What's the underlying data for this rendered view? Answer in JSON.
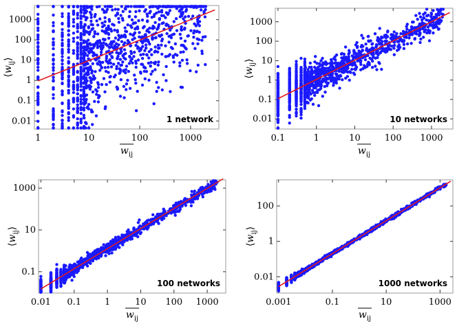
{
  "figure": {
    "xlabel": "w",
    "xlabel_sub": "ij",
    "ylabel": "w",
    "ylabel_sub": "ij",
    "point_color": "#1a1aff",
    "fit_color": "#e31a1c"
  },
  "chart_data": [
    {
      "type": "scatter",
      "annotation": "1 network",
      "xscale": "log",
      "yscale": "log",
      "xlim": [
        0.85,
        3600
      ],
      "ylim": [
        0.004,
        5000
      ],
      "xticks": [
        1,
        10,
        100,
        1000
      ],
      "xtick_labels": [
        "1",
        "10",
        "100",
        "1000"
      ],
      "yticks": [
        0.01,
        0.1,
        1,
        10,
        100,
        1000
      ],
      "ytick_labels": [
        "0.01",
        "0.1",
        "1",
        "10",
        "100",
        "1000"
      ],
      "fit_line": {
        "x": [
          1,
          3000
        ],
        "y": [
          0.95,
          3000
        ]
      },
      "discrete_x": [
        1,
        2,
        3,
        4,
        5,
        6,
        7,
        8
      ],
      "scatter_spread_decades": 1.2,
      "points_n": 1300
    },
    {
      "type": "scatter",
      "annotation": "10 networks",
      "xscale": "log",
      "yscale": "log",
      "xlim": [
        0.085,
        3600
      ],
      "ylim": [
        0.003,
        5000
      ],
      "xticks": [
        0.1,
        1,
        10,
        100,
        1000
      ],
      "xtick_labels": [
        "0.1",
        "1",
        "10",
        "100",
        "1000"
      ],
      "yticks": [
        0.01,
        0.1,
        1,
        10,
        100,
        1000
      ],
      "ytick_labels": [
        "0.01",
        "0.1",
        "1",
        "10",
        "100",
        "1000"
      ],
      "fit_line": {
        "x": [
          0.1,
          3000
        ],
        "y": [
          0.11,
          3000
        ]
      },
      "discrete_x": [
        0.1,
        0.2,
        0.3,
        0.4,
        0.5
      ],
      "scatter_spread_decades": 0.35,
      "points_n": 1400
    },
    {
      "type": "scatter",
      "annotation": "100 networks",
      "xscale": "log",
      "yscale": "log",
      "xlim": [
        0.0085,
        3600
      ],
      "ylim": [
        0.0095,
        2500
      ],
      "xticks": [
        0.01,
        0.1,
        1,
        10,
        100,
        1000
      ],
      "xtick_labels": [
        "0.01",
        "0.1",
        "1",
        "10",
        "100",
        "1000"
      ],
      "yticks": [
        0.1,
        10,
        1000
      ],
      "ytick_labels": [
        "0.1",
        "10",
        "1000"
      ],
      "fit_line": {
        "x": [
          0.01,
          3000
        ],
        "y": [
          0.015,
          2800
        ]
      },
      "discrete_x": [
        0.01,
        0.02,
        0.03,
        0.04,
        0.05
      ],
      "scatter_spread_decades": 0.12,
      "points_n": 1500
    },
    {
      "type": "scatter",
      "annotation": "1000 networks",
      "xscale": "log",
      "yscale": "log",
      "xlim": [
        0.00085,
        3000
      ],
      "ylim": [
        0.0012,
        3000
      ],
      "xticks": [
        0.001,
        0.1,
        10,
        1000
      ],
      "xtick_labels": [
        "0.001",
        "0.1",
        "10",
        "1000"
      ],
      "yticks": [
        0.01,
        1,
        100
      ],
      "ytick_labels": [
        "0.01",
        "1",
        "100"
      ],
      "fit_line": {
        "x": [
          0.001,
          2500
        ],
        "y": [
          0.0028,
          2500
        ]
      },
      "discrete_x": [
        0.001,
        0.002,
        0.003,
        0.004
      ],
      "scatter_spread_decades": 0.05,
      "points_n": 1500
    }
  ]
}
